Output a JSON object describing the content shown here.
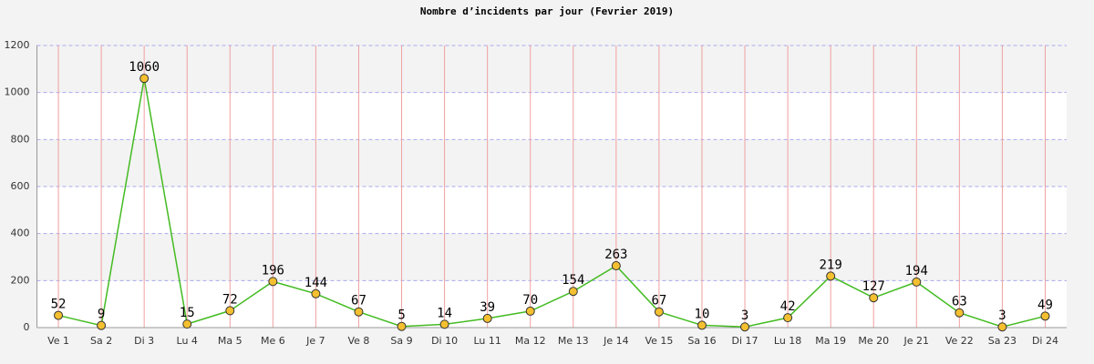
{
  "chart_data": {
    "type": "line",
    "title": "Nombre d’incidents par jour (Fevrier 2019)",
    "categories": [
      "Ve 1",
      "Sa 2",
      "Di 3",
      "Lu 4",
      "Ma 5",
      "Me 6",
      "Je 7",
      "Ve 8",
      "Sa 9",
      "Di 10",
      "Lu 11",
      "Ma 12",
      "Me 13",
      "Je 14",
      "Ve 15",
      "Sa 16",
      "Di 17",
      "Lu 18",
      "Ma 19",
      "Me 20",
      "Je 21",
      "Ve 22",
      "Sa 23",
      "Di 24"
    ],
    "values": [
      52,
      9,
      1060,
      15,
      72,
      196,
      144,
      67,
      5,
      14,
      39,
      70,
      154,
      263,
      67,
      10,
      3,
      42,
      219,
      127,
      194,
      63,
      3,
      49
    ],
    "color": "#44bb22",
    "marker_color": "#f4c030",
    "ylim": [
      0,
      1200
    ],
    "yticks": [
      0,
      200,
      400,
      600,
      800,
      1000,
      1200
    ],
    "grid": true
  }
}
